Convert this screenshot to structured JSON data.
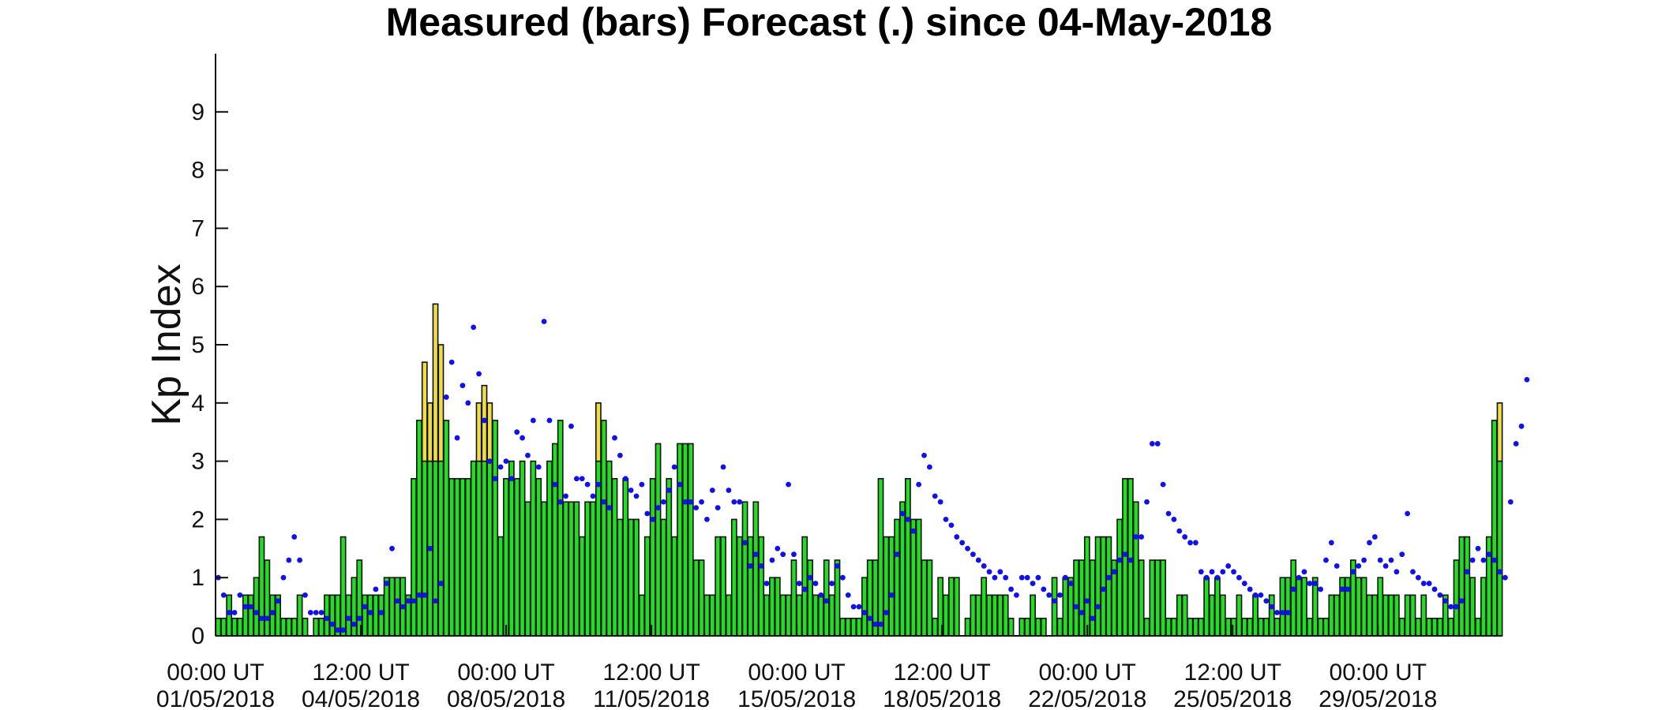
{
  "chart_data": {
    "type": "bar",
    "title": "Measured (bars) Forecast (.) since 04-May-2018",
    "ylabel": "Kp Index",
    "xlabel": "",
    "ylim": [
      0,
      10
    ],
    "yticks": [
      "0",
      "1",
      "2",
      "3",
      "4",
      "5",
      "6",
      "7",
      "8",
      "9"
    ],
    "xticks": [
      {
        "time": "00:00 UT",
        "date": "01/05/2018"
      },
      {
        "time": "12:00 UT",
        "date": "04/05/2018"
      },
      {
        "time": "00:00 UT",
        "date": "08/05/2018"
      },
      {
        "time": "12:00 UT",
        "date": "11/05/2018"
      },
      {
        "time": "00:00 UT",
        "date": "15/05/2018"
      },
      {
        "time": "12:00 UT",
        "date": "18/05/2018"
      },
      {
        "time": "00:00 UT",
        "date": "22/05/2018"
      },
      {
        "time": "12:00 UT",
        "date": "25/05/2018"
      },
      {
        "time": "00:00 UT",
        "date": "29/05/2018"
      }
    ],
    "x_start": "2018-05-01 00:00 UT",
    "x_end": "2018-06-01 00:00 UT",
    "interval": "3 hours",
    "series": [
      {
        "label": "Measured Kp (bars)",
        "colors": {
          "below_4": "#22dd22",
          "4_and_above": "#eedd44",
          "edge": "#111111"
        },
        "values": [
          0.3,
          0.3,
          0.7,
          0.3,
          0.3,
          0.7,
          0.7,
          1.0,
          1.7,
          1.3,
          0.7,
          0.7,
          0.3,
          0.3,
          0.3,
          0.7,
          0.3,
          0.0,
          0.3,
          0.3,
          0.7,
          0.7,
          0.7,
          1.7,
          0.7,
          1.0,
          1.3,
          0.7,
          0.7,
          0.7,
          0.7,
          1.0,
          1.0,
          1.0,
          1.0,
          0.7,
          2.7,
          3.7,
          4.7,
          4.0,
          5.7,
          5.0,
          3.7,
          2.7,
          2.7,
          2.7,
          2.7,
          3.0,
          4.0,
          4.3,
          4.0,
          3.7,
          1.7,
          2.7,
          3.0,
          2.7,
          3.0,
          2.3,
          3.0,
          2.7,
          2.3,
          3.0,
          3.3,
          3.7,
          2.3,
          2.3,
          2.3,
          1.7,
          2.3,
          2.3,
          4.0,
          3.7,
          3.0,
          2.7,
          2.0,
          2.7,
          2.0,
          2.0,
          0.7,
          1.7,
          2.7,
          3.3,
          2.0,
          2.7,
          1.7,
          3.3,
          3.3,
          3.3,
          1.3,
          1.3,
          0.7,
          0.7,
          1.7,
          1.7,
          0.7,
          2.0,
          1.7,
          2.3,
          1.7,
          2.3,
          1.7,
          0.7,
          1.0,
          1.0,
          0.7,
          0.7,
          1.3,
          0.7,
          1.7,
          1.3,
          0.7,
          0.7,
          1.3,
          0.7,
          1.3,
          0.3,
          0.3,
          0.3,
          0.3,
          1.0,
          1.3,
          1.3,
          2.7,
          1.7,
          1.7,
          2.0,
          2.3,
          2.7,
          2.0,
          2.0,
          1.3,
          1.3,
          0.3,
          1.0,
          0.7,
          1.0,
          1.0,
          0.0,
          0.3,
          0.7,
          0.7,
          1.0,
          0.7,
          0.7,
          0.7,
          0.7,
          0.3,
          0.0,
          0.3,
          0.3,
          0.7,
          0.3,
          0.3,
          0.0,
          1.0,
          0.3,
          1.0,
          1.0,
          1.3,
          1.3,
          1.7,
          1.3,
          1.7,
          1.7,
          1.7,
          1.3,
          2.0,
          2.7,
          2.7,
          2.3,
          1.3,
          0.3,
          1.3,
          1.3,
          1.3,
          0.3,
          0.3,
          0.7,
          0.7,
          0.3,
          0.3,
          0.3,
          1.0,
          0.7,
          1.0,
          0.7,
          0.3,
          0.3,
          0.7,
          0.3,
          0.3,
          0.7,
          0.3,
          0.3,
          0.7,
          0.3,
          1.0,
          1.0,
          1.3,
          1.0,
          1.0,
          0.3,
          1.0,
          0.3,
          0.3,
          0.7,
          0.7,
          1.0,
          1.0,
          1.3,
          1.0,
          1.0,
          0.7,
          0.7,
          1.0,
          0.7,
          0.7,
          0.7,
          0.3,
          0.7,
          0.7,
          0.3,
          0.7,
          0.3,
          0.3,
          0.3,
          0.7,
          0.3,
          1.3,
          1.7,
          1.7,
          1.0,
          0.3,
          1.0,
          1.7,
          3.7,
          4.0
        ]
      },
      {
        "label": "Forecast Kp (dots)",
        "color": "#1111ee",
        "values": [
          1.0,
          0.7,
          0.4,
          0.4,
          0.7,
          0.5,
          0.5,
          0.4,
          0.3,
          0.3,
          0.4,
          0.6,
          1.0,
          1.3,
          1.7,
          1.3,
          0.7,
          0.4,
          0.4,
          0.4,
          0.3,
          0.2,
          0.1,
          0.1,
          0.3,
          0.2,
          0.3,
          0.5,
          0.4,
          0.8,
          0.4,
          0.9,
          1.5,
          0.6,
          0.5,
          0.6,
          0.6,
          0.7,
          0.7,
          1.5,
          0.6,
          0.9,
          4.1,
          4.7,
          3.4,
          4.3,
          4.0,
          5.3,
          4.5,
          3.7,
          3.0,
          2.7,
          2.9,
          3.0,
          2.7,
          3.5,
          3.4,
          3.1,
          3.7,
          2.9,
          5.4,
          3.7,
          2.6,
          2.3,
          2.4,
          3.6,
          2.7,
          2.7,
          2.6,
          2.4,
          2.6,
          2.3,
          2.2,
          3.4,
          3.1,
          2.7,
          2.5,
          2.4,
          2.6,
          2.1,
          2.0,
          2.2,
          2.3,
          2.5,
          2.9,
          2.6,
          2.3,
          2.3,
          2.2,
          2.3,
          2.0,
          2.5,
          2.2,
          2.9,
          2.5,
          2.3,
          2.3,
          1.6,
          1.2,
          1.4,
          1.2,
          0.9,
          1.3,
          1.5,
          1.4,
          2.6,
          1.4,
          0.9,
          0.8,
          1.0,
          0.9,
          0.7,
          0.6,
          0.9,
          1.2,
          1.0,
          0.7,
          0.5,
          0.5,
          0.4,
          0.3,
          0.2,
          0.2,
          0.4,
          0.7,
          1.4,
          2.1,
          2.0,
          1.8,
          2.6,
          3.1,
          2.9,
          2.4,
          2.3,
          2.0,
          1.9,
          1.7,
          1.6,
          1.5,
          1.4,
          1.3,
          1.2,
          1.1,
          1.0,
          1.1,
          1.0,
          0.8,
          0.7,
          1.0,
          1.0,
          0.9,
          1.0,
          0.8,
          0.7,
          0.6,
          0.7,
          1.0,
          0.9,
          0.5,
          0.4,
          0.6,
          0.3,
          0.5,
          0.8,
          1.0,
          1.1,
          1.3,
          1.4,
          1.3,
          1.7,
          1.7,
          2.3,
          3.3,
          3.3,
          2.6,
          2.1,
          2.0,
          1.8,
          1.7,
          1.6,
          1.6,
          1.1,
          1.0,
          1.1,
          1.0,
          1.1,
          1.2,
          1.1,
          1.0,
          0.9,
          0.8,
          0.7,
          0.7,
          0.6,
          0.5,
          0.4,
          0.4,
          0.4,
          0.8,
          1.0,
          1.1,
          0.9,
          0.9,
          0.8,
          1.3,
          1.6,
          1.2,
          0.8,
          0.8,
          1.1,
          1.2,
          1.3,
          1.6,
          1.7,
          1.3,
          1.2,
          1.3,
          1.1,
          1.4,
          2.1,
          1.1,
          1.0,
          0.9,
          0.9,
          0.8,
          0.7,
          0.6,
          0.5,
          0.5,
          0.6,
          1.1,
          1.3,
          1.5,
          1.3,
          1.4,
          1.3,
          1.1,
          1.0,
          2.3,
          3.3,
          3.6,
          4.4
        ]
      }
    ],
    "grid": false,
    "legend": "none"
  }
}
